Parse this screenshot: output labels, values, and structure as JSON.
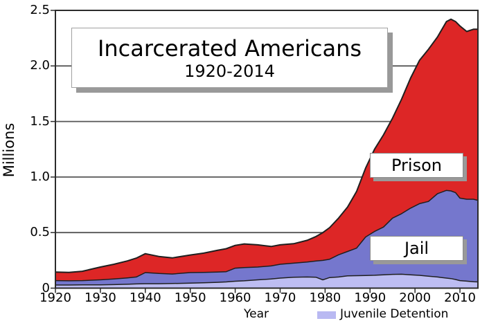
{
  "title": {
    "main": "Incarcerated Americans",
    "subtitle": "1920-2014"
  },
  "axes": {
    "y_label": "Millions",
    "x_label": "Year",
    "y_ticks": [
      "0",
      "0.5",
      "1.0",
      "1.5",
      "2.0",
      "2.5"
    ],
    "y_tick_values": [
      0,
      0.5,
      1.0,
      1.5,
      2.0,
      2.5
    ],
    "x_ticks": [
      "1920",
      "1930",
      "1940",
      "1950",
      "1960",
      "1970",
      "1980",
      "1990",
      "2000",
      "2010"
    ],
    "x_tick_values": [
      1920,
      1930,
      1940,
      1950,
      1960,
      1970,
      1980,
      1990,
      2000,
      2010
    ]
  },
  "area_labels": {
    "prison": "Prison",
    "jail": "Jail"
  },
  "legend": {
    "label": "Juvenile Detention",
    "swatch_color": "#b9b9f2"
  },
  "colors": {
    "prison": "#dd2626",
    "jail": "#7577cd",
    "juvenile": "#bdbdf2",
    "line": "#1f1f1f",
    "grid": "#555555",
    "axis": "#2b2b2b",
    "shadow": "#999999"
  },
  "chart_data": {
    "type": "area",
    "stacked": true,
    "title": "Incarcerated Americans 1920-2014",
    "xlabel": "Year",
    "ylabel": "Millions",
    "xlim": [
      1920,
      2014
    ],
    "ylim": [
      0,
      2.5
    ],
    "grid": true,
    "legend_position": "bottom",
    "x": [
      1920,
      1923,
      1926,
      1930,
      1933,
      1936,
      1938,
      1940,
      1943,
      1946,
      1950,
      1953,
      1956,
      1958,
      1960,
      1962,
      1965,
      1968,
      1970,
      1973,
      1976,
      1978,
      1979.5,
      1981,
      1983,
      1985,
      1987,
      1989,
      1991,
      1993,
      1995,
      1997,
      1999,
      2001,
      2003,
      2005,
      2007,
      2008,
      2009,
      2010,
      2011.5,
      2013,
      2014
    ],
    "series": [
      {
        "name": "Juvenile Detention",
        "color": "#bdbdf2",
        "values": [
          0.028,
          0.028,
          0.029,
          0.03,
          0.032,
          0.035,
          0.038,
          0.04,
          0.04,
          0.042,
          0.045,
          0.048,
          0.052,
          0.056,
          0.062,
          0.066,
          0.075,
          0.082,
          0.09,
          0.098,
          0.1,
          0.098,
          0.075,
          0.095,
          0.1,
          0.11,
          0.112,
          0.114,
          0.116,
          0.12,
          0.124,
          0.125,
          0.12,
          0.115,
          0.108,
          0.1,
          0.09,
          0.086,
          0.078,
          0.068,
          0.063,
          0.058,
          0.056
        ]
      },
      {
        "name": "Jail",
        "color": "#7577cd",
        "values": [
          0.04,
          0.038,
          0.039,
          0.045,
          0.05,
          0.057,
          0.062,
          0.1,
          0.092,
          0.085,
          0.095,
          0.094,
          0.093,
          0.092,
          0.118,
          0.119,
          0.115,
          0.118,
          0.125,
          0.127,
          0.135,
          0.147,
          0.175,
          0.165,
          0.2,
          0.22,
          0.248,
          0.346,
          0.394,
          0.43,
          0.506,
          0.545,
          0.6,
          0.645,
          0.672,
          0.75,
          0.79,
          0.789,
          0.782,
          0.742,
          0.737,
          0.742,
          0.734
        ]
      },
      {
        "name": "Prison",
        "color": "#dd2626",
        "values": [
          0.077,
          0.076,
          0.084,
          0.115,
          0.133,
          0.153,
          0.17,
          0.17,
          0.153,
          0.145,
          0.158,
          0.173,
          0.195,
          0.207,
          0.205,
          0.213,
          0.2,
          0.175,
          0.175,
          0.175,
          0.195,
          0.22,
          0.25,
          0.285,
          0.33,
          0.4,
          0.51,
          0.62,
          0.74,
          0.83,
          0.9,
          1.03,
          1.17,
          1.29,
          1.37,
          1.41,
          1.52,
          1.545,
          1.54,
          1.55,
          1.51,
          1.53,
          1.54
        ]
      }
    ]
  }
}
